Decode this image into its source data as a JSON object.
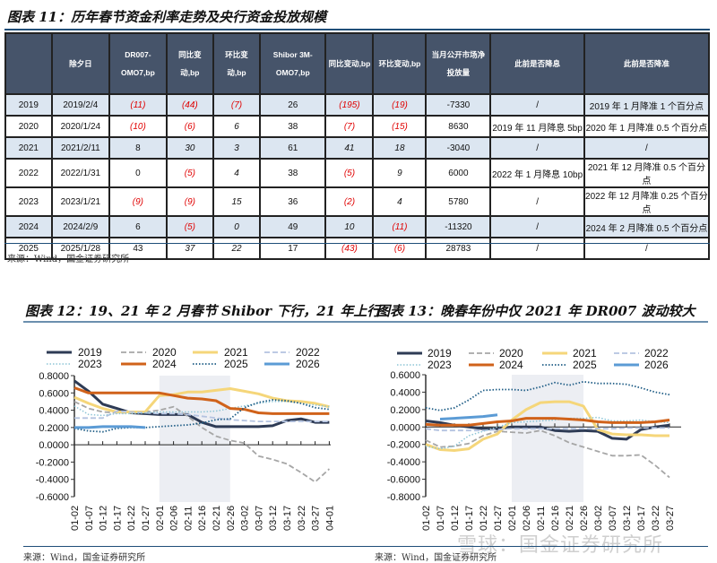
{
  "table_title": "图表 11：历年春节资金利率走势及央行资金投放规模",
  "table": {
    "headers": [
      "",
      "除夕日",
      "DR007-OMO7,bp",
      "同比变动,bp",
      "环比变动,bp",
      "Shibor 3M-OMO7,bp",
      "同比变动,bp",
      "环比变动,bp",
      "当月公开市场净投放量",
      "此前是否降息",
      "此前是否降准"
    ],
    "rows": [
      [
        "2019",
        "2019/2/4",
        "(11)",
        "(44)",
        "(7)",
        "26",
        "(195)",
        "(19)",
        "-7330",
        "/",
        "2019 年 1 月降准 1 个百分点"
      ],
      [
        "2020",
        "2020/1/24",
        "(10)",
        "(6)",
        "6",
        "38",
        "(7)",
        "(15)",
        "8630",
        "2019 年 11 月降息 5bp",
        "2020 年 1 月降准 0.5 个百分点"
      ],
      [
        "2021",
        "2021/2/11",
        "8",
        "30",
        "3",
        "61",
        "41",
        "18",
        "-3040",
        "/",
        "/"
      ],
      [
        "2022",
        "2022/1/31",
        "0",
        "(5)",
        "4",
        "38",
        "(5)",
        "9",
        "6000",
        "2022 年 1 月降息 10bp",
        "2021 年 12 月降准 0.5 个百分点"
      ],
      [
        "2023",
        "2023/1/21",
        "(9)",
        "(9)",
        "15",
        "36",
        "(2)",
        "4",
        "5780",
        "/",
        "2022 年 12 月降准 0.25 个百分点"
      ],
      [
        "2024",
        "2024/2/9",
        "6",
        "(5)",
        "0",
        "49",
        "10",
        "(11)",
        "-11320",
        "/",
        "2024 年 2 月降准 0.5 个百分点"
      ],
      [
        "2025",
        "2025/1/28",
        "43",
        "37",
        "22",
        "17",
        "(43)",
        "(6)",
        "28783",
        "/",
        "/"
      ]
    ],
    "source": "来源：Wind，国金证券研究所"
  },
  "colors": {
    "header_bg": "#46546a",
    "row_shade": "#dce6f1",
    "negative": "#e00000",
    "rule": "#1f4e79"
  },
  "chart_data": [
    {
      "type": "line",
      "title": "图表 12：19、21 年 2 月春节 Shibor 下行，21 年上行",
      "ylim": [
        -0.6,
        0.8
      ],
      "yticks": [
        "0.8000",
        "0.6000",
        "0.4000",
        "0.2000",
        "0.0000",
        "-0.2000",
        "-0.4000",
        "-0.6000"
      ],
      "categories": [
        "01-02",
        "01-07",
        "01-12",
        "01-17",
        "01-22",
        "01-27",
        "02-01",
        "02-06",
        "02-11",
        "02-16",
        "02-21",
        "02-26",
        "03-02",
        "03-07",
        "03-12",
        "03-17",
        "03-22",
        "03-27",
        "04-01"
      ],
      "shaded_range": [
        "02-01",
        "02-26"
      ],
      "legend": "top",
      "series": [
        {
          "name": "2019",
          "color": "#2e3b55",
          "style": "solid",
          "width": 3,
          "values": [
            0.74,
            0.62,
            0.47,
            0.42,
            0.37,
            0.36,
            0.35,
            0.35,
            0.35,
            0.26,
            0.21,
            0.21,
            0.21,
            0.21,
            0.22,
            0.28,
            0.3,
            0.26,
            0.26
          ]
        },
        {
          "name": "2020",
          "color": "#a6a6a6",
          "style": "dashed",
          "width": 1.8,
          "values": [
            0.5,
            0.42,
            0.38,
            0.37,
            0.37,
            0.38,
            0.4,
            0.44,
            0.33,
            0.2,
            0.1,
            0.05,
            0.02,
            -0.13,
            -0.17,
            -0.22,
            -0.32,
            -0.43,
            -0.28
          ]
        },
        {
          "name": "2021",
          "color": "#f5d67a",
          "style": "solid",
          "width": 3,
          "values": [
            0.55,
            0.48,
            0.42,
            0.38,
            0.38,
            0.38,
            0.57,
            0.58,
            0.61,
            0.61,
            0.63,
            0.65,
            0.62,
            0.59,
            0.54,
            0.51,
            0.5,
            0.48,
            0.44
          ]
        },
        {
          "name": "2022",
          "color": "#b4c3e0",
          "style": "dashed",
          "width": 1.8,
          "values": [
            0.31,
            0.31,
            0.31,
            0.39,
            0.38,
            0.37,
            0.36,
            0.36,
            0.35,
            0.33,
            0.31,
            0.29,
            0.28,
            0.27,
            0.27,
            0.27,
            0.27,
            0.27,
            0.27
          ]
        },
        {
          "name": "2023",
          "color": "#8ec5d6",
          "style": "dotted",
          "width": 1.5,
          "values": [
            0.45,
            0.35,
            0.34,
            0.36,
            0.36,
            0.37,
            0.38,
            0.38,
            0.38,
            0.38,
            0.39,
            0.42,
            0.45,
            0.48,
            0.5,
            0.5,
            0.48,
            0.46,
            0.44
          ]
        },
        {
          "name": "2024",
          "color": "#d0621a",
          "style": "solid",
          "width": 3,
          "values": [
            0.66,
            0.6,
            0.6,
            0.6,
            0.6,
            0.6,
            0.6,
            0.57,
            0.54,
            0.53,
            0.51,
            0.42,
            0.41,
            0.37,
            0.36,
            0.36,
            0.36,
            0.36,
            0.36
          ]
        },
        {
          "name": "2025",
          "color": "#1f5d86",
          "style": "dotted",
          "width": 1.8,
          "values": [
            0.19,
            0.16,
            0.15,
            0.19,
            0.2,
            0.2,
            0.21,
            0.22,
            0.23,
            0.25,
            0.29,
            0.3,
            0.43,
            0.49,
            0.52,
            0.51,
            0.48,
            0.43,
            0.41
          ]
        },
        {
          "name": "2026",
          "color": "#5b9bd5",
          "style": "solid",
          "width": 3,
          "values": [
            0.2,
            0.2,
            0.21,
            0.21,
            0.21,
            0.2,
            null,
            null,
            null,
            null,
            null,
            null,
            null,
            null,
            null,
            null,
            null,
            null,
            null
          ]
        }
      ]
    },
    {
      "type": "line",
      "title": "图表 13：晚春年份中仅 2021 年 DR007 波动较大",
      "ylim": [
        -0.8,
        0.6
      ],
      "yticks": [
        "0.6000",
        "0.4000",
        "0.2000",
        "0.0000",
        "-0.2000",
        "-0.4000",
        "-0.6000",
        "-0.8000"
      ],
      "categories": [
        "01-02",
        "01-07",
        "01-12",
        "01-17",
        "01-22",
        "01-27",
        "02-01",
        "02-06",
        "02-11",
        "02-16",
        "02-21",
        "02-26",
        "03-02",
        "03-07",
        "03-12",
        "03-17",
        "03-22",
        "03-27"
      ],
      "shaded_range": [
        "02-01",
        "02-26"
      ],
      "legend": "top",
      "series": [
        {
          "name": "2019",
          "color": "#2e3b55",
          "style": "solid",
          "width": 3,
          "values": [
            0.07,
            0.05,
            0.02,
            0.0,
            -0.02,
            -0.02,
            0.0,
            0.0,
            0.0,
            -0.04,
            -0.05,
            -0.04,
            -0.05,
            -0.13,
            -0.14,
            -0.03,
            0.0,
            0.02
          ]
        },
        {
          "name": "2020",
          "color": "#a6a6a6",
          "style": "dashed",
          "width": 1.8,
          "values": [
            -0.15,
            -0.23,
            -0.22,
            -0.19,
            -0.1,
            -0.05,
            -0.06,
            -0.07,
            -0.04,
            -0.1,
            -0.18,
            -0.23,
            -0.28,
            -0.33,
            -0.33,
            -0.32,
            -0.44,
            -0.58
          ]
        },
        {
          "name": "2021",
          "color": "#f5d67a",
          "style": "solid",
          "width": 3,
          "values": [
            -0.2,
            -0.26,
            -0.27,
            -0.25,
            -0.14,
            -0.08,
            0.08,
            0.2,
            0.28,
            0.29,
            0.29,
            0.24,
            -0.03,
            -0.08,
            -0.09,
            -0.09,
            -0.1,
            -0.1
          ]
        },
        {
          "name": "2022",
          "color": "#b4c3e0",
          "style": "dashed",
          "width": 1.8,
          "values": [
            -0.02,
            -0.04,
            -0.04,
            -0.04,
            -0.04,
            -0.03,
            -0.02,
            -0.02,
            -0.02,
            -0.02,
            -0.02,
            -0.02,
            -0.02,
            -0.02,
            -0.01,
            -0.01,
            -0.01,
            -0.01
          ]
        },
        {
          "name": "2023",
          "color": "#8ec5d6",
          "style": "dotted",
          "width": 1.5,
          "values": [
            -0.22,
            -0.25,
            -0.22,
            -0.1,
            -0.05,
            0.0,
            0.05,
            0.06,
            0.07,
            0.08,
            0.1,
            0.1,
            0.11,
            0.07,
            0.07,
            0.08,
            0.06,
            0.05
          ]
        },
        {
          "name": "2024",
          "color": "#d0621a",
          "style": "solid",
          "width": 3,
          "values": [
            0.03,
            0.02,
            0.02,
            0.02,
            0.04,
            0.06,
            0.07,
            0.1,
            0.1,
            0.1,
            0.09,
            0.08,
            0.06,
            0.05,
            0.05,
            0.05,
            0.06,
            0.08
          ]
        },
        {
          "name": "2025",
          "color": "#1f5d86",
          "style": "dotted",
          "width": 1.8,
          "values": [
            0.22,
            0.19,
            0.22,
            0.31,
            0.42,
            0.43,
            0.43,
            0.42,
            0.46,
            0.51,
            0.48,
            0.52,
            0.5,
            0.5,
            0.49,
            0.45,
            0.4,
            0.37
          ]
        },
        {
          "name": "2026",
          "color": "#5b9bd5",
          "style": "solid",
          "width": 3,
          "values": [
            null,
            0.09,
            0.1,
            0.11,
            0.12,
            0.14,
            null,
            null,
            null,
            null,
            null,
            null,
            null,
            null,
            null,
            null,
            null,
            null
          ]
        }
      ]
    }
  ],
  "chart_sources": [
    "来源：Wind，国金证券研究所",
    "来源：Wind，国金证券研究所"
  ],
  "watermark": "雪球：国金证券研究所"
}
